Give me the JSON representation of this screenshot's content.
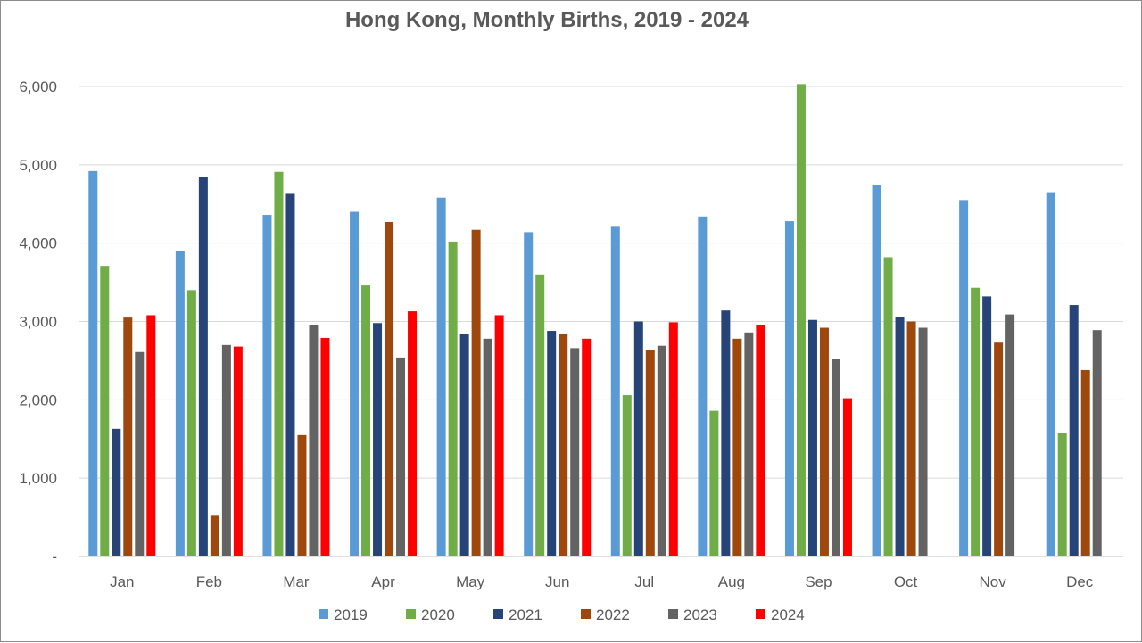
{
  "chart_data": {
    "type": "bar",
    "title": "Hong Kong, Monthly Births, 2019 - 2024",
    "xlabel": "",
    "ylabel": "",
    "ylim": [
      0,
      6000
    ],
    "yticks": [
      0,
      1000,
      2000,
      3000,
      4000,
      5000,
      6000
    ],
    "ytick_labels": [
      "-",
      "1,000",
      "2,000",
      "3,000",
      "4,000",
      "5,000",
      "6,000"
    ],
    "grid": true,
    "legend_position": "bottom",
    "categories": [
      "Jan",
      "Feb",
      "Mar",
      "Apr",
      "May",
      "Jun",
      "Jul",
      "Aug",
      "Sep",
      "Oct",
      "Nov",
      "Dec"
    ],
    "series": [
      {
        "name": "2019",
        "color": "#5b9bd5",
        "values": [
          4920,
          3900,
          4360,
          4400,
          4580,
          4140,
          4220,
          4340,
          4280,
          4740,
          4550,
          4650
        ]
      },
      {
        "name": "2020",
        "color": "#70ad47",
        "values": [
          3710,
          3400,
          4910,
          3460,
          4020,
          3600,
          2060,
          1860,
          6030,
          3820,
          3430,
          1580
        ]
      },
      {
        "name": "2021",
        "color": "#264478",
        "values": [
          1630,
          4840,
          4640,
          2980,
          2840,
          2880,
          3000,
          3140,
          3020,
          3060,
          3320,
          3210
        ]
      },
      {
        "name": "2022",
        "color": "#9e480e",
        "values": [
          3050,
          520,
          1550,
          4270,
          4170,
          2840,
          2630,
          2780,
          2920,
          3000,
          2730,
          2380
        ]
      },
      {
        "name": "2023",
        "color": "#636363",
        "values": [
          2610,
          2700,
          2960,
          2540,
          2780,
          2660,
          2690,
          2860,
          2520,
          2920,
          3090,
          2890
        ]
      },
      {
        "name": "2024",
        "color": "#ff0000",
        "values": [
          3080,
          2680,
          2790,
          3130,
          3080,
          2780,
          2990,
          2960,
          2020,
          null,
          null,
          null
        ]
      }
    ]
  }
}
